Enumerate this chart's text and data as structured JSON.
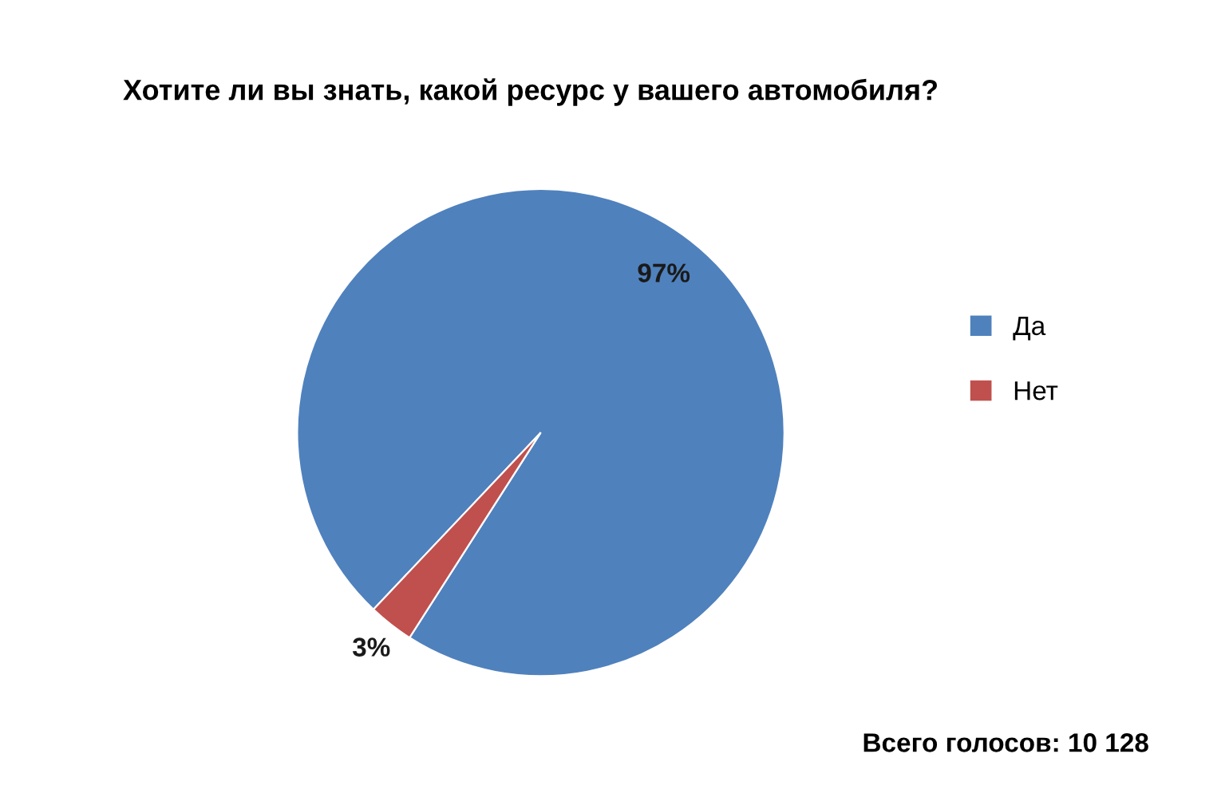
{
  "chart_data": {
    "type": "pie",
    "title": "Хотите ли вы знать, какой ресурс у вашего автомобиля?",
    "categories": [
      "Да",
      "Нет"
    ],
    "values": [
      97,
      3
    ],
    "colors": [
      "#4f81bd",
      "#c0504d"
    ],
    "value_labels": [
      "97%",
      "3%"
    ],
    "legend": "right",
    "annotations": [
      "Всего голосов: 10 128"
    ]
  }
}
